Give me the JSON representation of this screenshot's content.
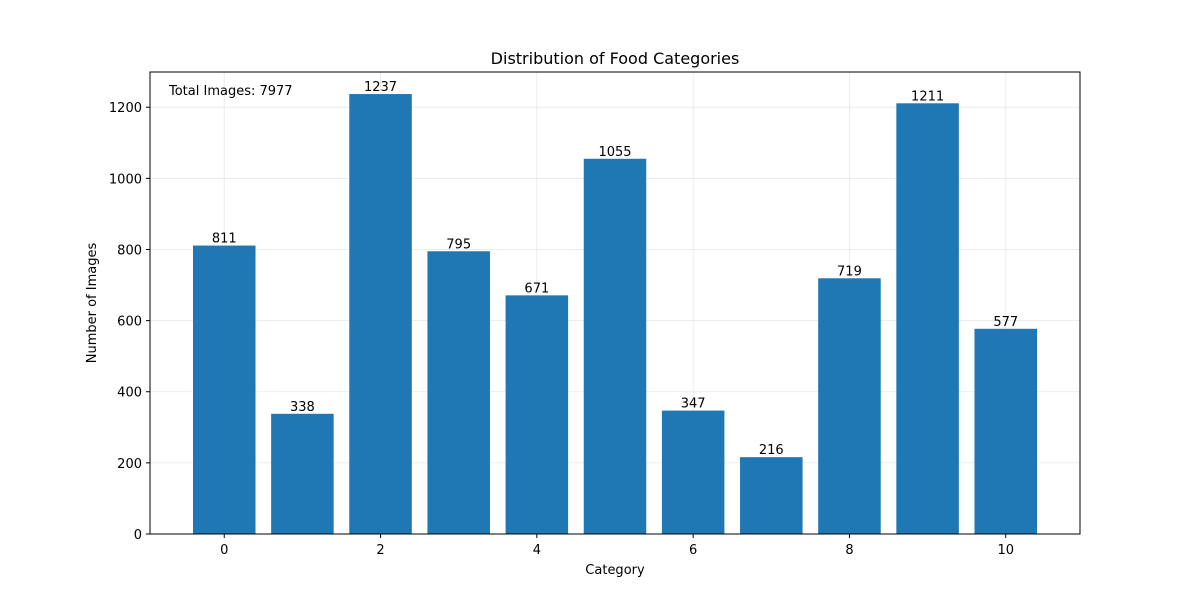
{
  "chart_data": {
    "type": "bar",
    "title": "Distribution of Food Categories",
    "xlabel": "Category",
    "ylabel": "Number of Images",
    "categories": [
      0,
      1,
      2,
      3,
      4,
      5,
      6,
      7,
      8,
      9,
      10
    ],
    "values": [
      811,
      338,
      1237,
      795,
      671,
      1055,
      347,
      216,
      719,
      1211,
      577
    ],
    "data_labels": [
      "811",
      "338",
      "1237",
      "795",
      "671",
      "1055",
      "347",
      "216",
      "719",
      "1211",
      "577"
    ],
    "xlim": [
      -0.95,
      10.95
    ],
    "ylim": [
      0,
      1299
    ],
    "x_ticks": [
      0,
      2,
      4,
      6,
      8,
      10
    ],
    "y_ticks": [
      0,
      200,
      400,
      600,
      800,
      1000,
      1200
    ],
    "grid": true,
    "annotation": "Total Images: 7977",
    "annotation_position": "top-left",
    "bar_color": "#1f77b4"
  }
}
